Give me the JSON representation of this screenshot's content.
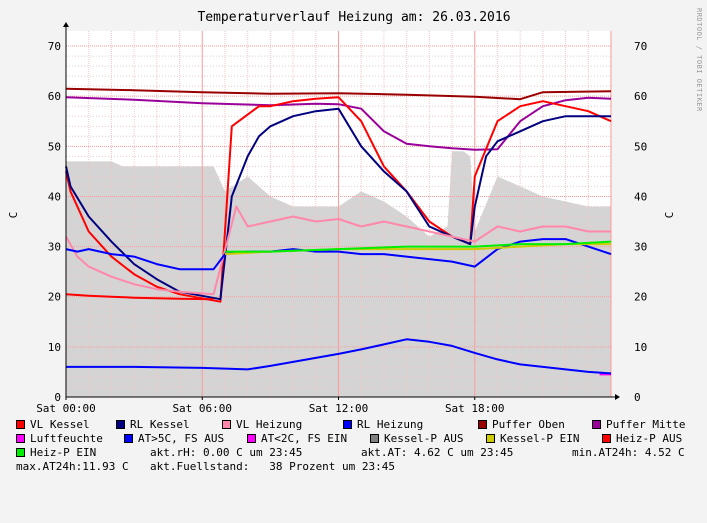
{
  "chart_data": {
    "type": "line",
    "title": "Temperaturverlauf Heizung am: 26.03.2016",
    "ylabel": "C",
    "ylabel_right": "C",
    "side_text": "RRDTOOL / TOBI OETIKER",
    "ylim": [
      0,
      73
    ],
    "yticks": [
      0,
      10,
      20,
      30,
      40,
      50,
      60,
      70
    ],
    "xlim": [
      0,
      24
    ],
    "xticks": [
      {
        "value": 0,
        "label": "Sat 00:00"
      },
      {
        "value": 6,
        "label": "Sat 06:00"
      },
      {
        "value": 12,
        "label": "Sat 12:00"
      },
      {
        "value": 18,
        "label": "Sat 18:00"
      }
    ],
    "grid": true,
    "legend_position": "bottom",
    "area": {
      "name": "Fuellstand",
      "color": "#d4d4d4",
      "x": [
        0,
        2,
        2.5,
        4,
        6.5,
        7,
        8,
        9,
        10,
        11,
        12,
        13,
        14,
        15,
        16,
        16.8,
        17,
        17.5,
        17.8,
        18,
        19,
        20,
        21,
        22,
        23,
        24
      ],
      "y": [
        47,
        47,
        46,
        46,
        46,
        41,
        44,
        40,
        38,
        38,
        38,
        41,
        39,
        36,
        32,
        34,
        49,
        49,
        48,
        33,
        44,
        42,
        40,
        39,
        38,
        38
      ]
    },
    "series": [
      {
        "name": "Puffer Oben",
        "color": "#990000",
        "x": [
          0,
          3,
          6,
          9,
          12,
          15,
          18,
          20,
          21,
          24
        ],
        "y": [
          61.5,
          61.2,
          60.8,
          60.5,
          60.6,
          60.3,
          59.9,
          59.4,
          60.8,
          61
        ]
      },
      {
        "name": "Puffer Mitte",
        "color": "#990099",
        "x": [
          0,
          3,
          6,
          9,
          11,
          12,
          13,
          14,
          15,
          16,
          17,
          18,
          19,
          20,
          21,
          22,
          23,
          24
        ],
        "y": [
          59.8,
          59.3,
          58.6,
          58.2,
          58.5,
          58.4,
          57.5,
          53,
          50.5,
          50,
          49.6,
          49.3,
          49.4,
          55,
          58,
          59.2,
          59.7,
          59.5
        ]
      },
      {
        "name": "VL Kessel",
        "color": "#ff0000",
        "x": [
          0,
          0.2,
          1,
          2,
          3,
          4,
          5,
          6.8,
          7.3,
          8.5,
          9,
          10,
          11,
          12,
          13,
          14,
          15,
          16,
          17,
          17.8,
          18,
          19,
          20,
          21,
          22,
          23,
          24
        ],
        "y": [
          45,
          41,
          33,
          28,
          24.5,
          22,
          20.5,
          19,
          54,
          58,
          58,
          59,
          59.5,
          59.8,
          55,
          46,
          41,
          35,
          32,
          30.5,
          44,
          55,
          58,
          59,
          58,
          57,
          55
        ]
      },
      {
        "name": "RL Kessel",
        "color": "#000080",
        "x": [
          0,
          0.2,
          1,
          2,
          3,
          4,
          5,
          6.8,
          7.3,
          8,
          8.5,
          9,
          10,
          11,
          12,
          13,
          14,
          15,
          16,
          17,
          17.8,
          18,
          18.5,
          19,
          20,
          21,
          22,
          23,
          24
        ],
        "y": [
          46,
          42,
          36,
          31,
          26.5,
          23.5,
          21,
          19.5,
          40,
          48,
          52,
          54,
          56,
          57,
          57.5,
          50,
          45,
          41,
          34,
          32,
          30.5,
          38,
          48,
          51,
          53,
          55,
          56,
          56,
          56
        ]
      },
      {
        "name": "VL Heizung",
        "color": "#ff88aa",
        "x": [
          0,
          0.5,
          1,
          2,
          3,
          4,
          5,
          6.5,
          7.5,
          8,
          9,
          10,
          11,
          12,
          13,
          14,
          15,
          16,
          17,
          18,
          19,
          20,
          21,
          22,
          23,
          24
        ],
        "y": [
          32,
          28,
          26,
          24,
          22.5,
          21.5,
          21,
          20.5,
          38,
          34,
          35,
          36,
          35,
          35.5,
          34,
          35,
          34,
          33,
          32,
          31,
          34,
          33,
          34,
          34,
          33,
          33
        ]
      },
      {
        "name": "RL Heizung",
        "color": "#0000ff",
        "x": [
          0,
          0.5,
          1,
          2,
          3,
          4,
          5,
          6.5,
          7,
          8,
          9,
          10,
          11,
          12,
          13,
          14,
          15,
          16,
          17,
          18,
          19,
          20,
          21,
          22,
          23,
          24
        ],
        "y": [
          29.5,
          29,
          29.5,
          28.5,
          28,
          26.5,
          25.5,
          25.5,
          28.5,
          29,
          29,
          29.5,
          29,
          29,
          28.5,
          28.5,
          28,
          27.5,
          27,
          26,
          29.5,
          31,
          31.5,
          31.5,
          30,
          28.5
        ]
      },
      {
        "name": "Luftfeuchte",
        "color": "#ff00ff",
        "x": [
          23.5,
          24
        ],
        "y": [
          4.5,
          4.5
        ]
      },
      {
        "name": "AT>5C, FS AUS",
        "color": "#0000ff",
        "x": [
          0,
          3,
          6,
          8,
          9,
          10,
          11,
          12,
          13,
          14,
          15,
          16,
          17,
          18,
          19,
          20,
          21,
          22,
          23,
          24
        ],
        "y": [
          6,
          6,
          5.8,
          5.5,
          6.2,
          7,
          7.8,
          8.6,
          9.5,
          10.5,
          11.5,
          11,
          10.2,
          8.8,
          7.5,
          6.5,
          6,
          5.5,
          5,
          4.7
        ]
      },
      {
        "name": "Kessel-P EIN",
        "color": "#cccc00",
        "x": [
          7,
          9,
          12,
          15,
          18,
          20,
          22,
          24
        ],
        "y": [
          28.5,
          29,
          29.5,
          29.5,
          29.5,
          30,
          30.5,
          30.5
        ]
      },
      {
        "name": "Heiz-P EIN",
        "color": "#00ee00",
        "x": [
          7,
          9,
          12,
          15,
          18,
          20,
          22,
          24
        ],
        "y": [
          29,
          29,
          29.5,
          30,
          30,
          30.5,
          30.5,
          31
        ]
      },
      {
        "name": "Heiz-P AUS",
        "color": "#ff0000",
        "x": [
          0,
          1,
          2,
          3,
          4,
          5,
          6.5
        ],
        "y": [
          20.5,
          20.2,
          20,
          19.8,
          19.7,
          19.6,
          19.5
        ]
      }
    ],
    "legend": [
      {
        "label": "VL Kessel",
        "color": "#ff0000"
      },
      {
        "label": "RL Kessel",
        "color": "#000080"
      },
      {
        "label": "VL Heizung",
        "color": "#ff88aa"
      },
      {
        "label": "RL Heizung",
        "color": "#0000ff"
      },
      {
        "label": "Puffer Oben",
        "color": "#990000"
      },
      {
        "label": "Puffer Mitte",
        "color": "#990099"
      },
      {
        "label": "Luftfeuchte",
        "color": "#ff00ff"
      },
      {
        "label": "AT>5C, FS AUS",
        "color": "#0000ff"
      },
      {
        "label": "AT<2C, FS EIN",
        "color": "#ff00ff"
      },
      {
        "label": "Kessel-P AUS",
        "color": "#808080"
      },
      {
        "label": "Kessel-P EIN",
        "color": "#cccc00"
      },
      {
        "label": "Heiz-P AUS",
        "color": "#ff0000"
      },
      {
        "label": "Heiz-P EIN",
        "color": "#00ee00"
      }
    ]
  },
  "info": {
    "akt_rh": "akt.rH: 0.00 C um 23:45",
    "akt_at": "akt.AT: 4.62 C um 23:45",
    "min_at": "min.AT24h: 4.52 C",
    "max_at": "max.AT24h:11.93 C",
    "fuellstand": "akt.Fuellstand:   38 Prozent um 23:45"
  }
}
